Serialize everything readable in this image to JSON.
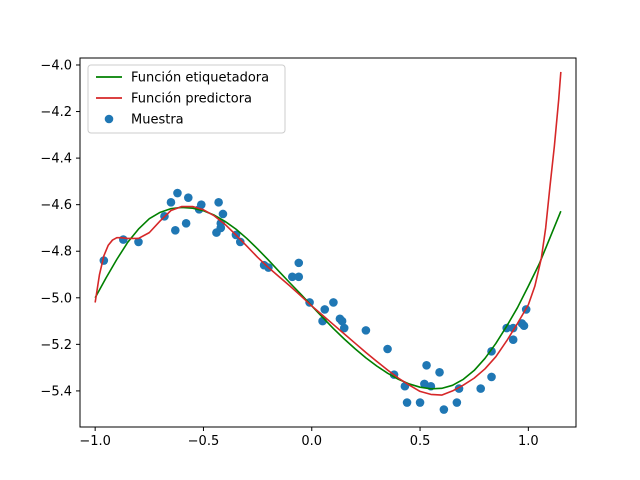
{
  "chart_data": {
    "type": "line",
    "title": "",
    "xlabel": "",
    "ylabel": "",
    "xlim": [
      -1.07,
      1.22
    ],
    "ylim": [
      -5.555,
      -3.97
    ],
    "xticks": [
      -1.0,
      -0.5,
      0.0,
      0.5,
      1.0
    ],
    "xtick_labels": [
      "−1.0",
      "−0.5",
      "0.0",
      "0.5",
      "1.0"
    ],
    "yticks": [
      -5.4,
      -5.2,
      -5.0,
      -4.8,
      -4.6,
      -4.4,
      -4.2,
      -4.0
    ],
    "ytick_labels": [
      "−5.4",
      "−5.2",
      "−5.0",
      "−4.8",
      "−4.6",
      "−4.4",
      "−4.2",
      "−4.0"
    ],
    "grid": false,
    "legend_position": "top-left",
    "series": [
      {
        "name": "Función etiquetadora",
        "kind": "line",
        "color": "#008000",
        "x": [
          -1.0,
          -0.95,
          -0.9,
          -0.85,
          -0.8,
          -0.75,
          -0.7,
          -0.65,
          -0.6,
          -0.55,
          -0.5,
          -0.45,
          -0.4,
          -0.35,
          -0.3,
          -0.25,
          -0.2,
          -0.15,
          -0.1,
          -0.05,
          0.0,
          0.05,
          0.1,
          0.15,
          0.2,
          0.25,
          0.3,
          0.35,
          0.4,
          0.45,
          0.5,
          0.55,
          0.6,
          0.65,
          0.7,
          0.75,
          0.8,
          0.85,
          0.9,
          0.95,
          1.0,
          1.05,
          1.1,
          1.15
        ],
        "y": [
          -5.0,
          -4.915,
          -4.835,
          -4.762,
          -4.705,
          -4.66,
          -4.633,
          -4.617,
          -4.612,
          -4.615,
          -4.626,
          -4.645,
          -4.672,
          -4.705,
          -4.745,
          -4.79,
          -4.838,
          -4.888,
          -4.937,
          -4.985,
          -5.035,
          -5.084,
          -5.132,
          -5.177,
          -5.219,
          -5.258,
          -5.293,
          -5.324,
          -5.35,
          -5.37,
          -5.384,
          -5.391,
          -5.389,
          -5.376,
          -5.35,
          -5.312,
          -5.26,
          -5.196,
          -5.122,
          -5.042,
          -4.95,
          -4.855,
          -4.742,
          -4.628
        ]
      },
      {
        "name": "Función predictora",
        "kind": "line",
        "color": "#d62728",
        "x": [
          -1.0,
          -0.98,
          -0.96,
          -0.94,
          -0.92,
          -0.9,
          -0.88,
          -0.85,
          -0.8,
          -0.75,
          -0.7,
          -0.65,
          -0.6,
          -0.55,
          -0.5,
          -0.45,
          -0.4,
          -0.35,
          -0.3,
          -0.25,
          -0.2,
          -0.15,
          -0.1,
          -0.05,
          0.0,
          0.05,
          0.1,
          0.15,
          0.2,
          0.25,
          0.3,
          0.35,
          0.4,
          0.45,
          0.5,
          0.55,
          0.6,
          0.65,
          0.7,
          0.75,
          0.8,
          0.85,
          0.9,
          0.95,
          1.0,
          1.03,
          1.06,
          1.08,
          1.1,
          1.12,
          1.14,
          1.15
        ],
        "y": [
          -5.02,
          -4.9,
          -4.82,
          -4.775,
          -4.752,
          -4.742,
          -4.742,
          -4.745,
          -4.745,
          -4.72,
          -4.67,
          -4.625,
          -4.608,
          -4.608,
          -4.622,
          -4.648,
          -4.685,
          -4.73,
          -4.778,
          -4.826,
          -4.87,
          -4.91,
          -4.95,
          -4.992,
          -5.035,
          -5.075,
          -5.115,
          -5.155,
          -5.195,
          -5.235,
          -5.273,
          -5.31,
          -5.345,
          -5.375,
          -5.402,
          -5.415,
          -5.418,
          -5.4,
          -5.375,
          -5.345,
          -5.305,
          -5.253,
          -5.185,
          -5.11,
          -5.03,
          -4.95,
          -4.83,
          -4.7,
          -4.52,
          -4.35,
          -4.15,
          -4.03
        ]
      },
      {
        "name": "Muestra",
        "kind": "scatter",
        "color": "#1f77b4",
        "x": [
          -0.96,
          -0.87,
          -0.8,
          -0.68,
          -0.65,
          -0.63,
          -0.62,
          -0.58,
          -0.57,
          -0.52,
          -0.51,
          -0.44,
          -0.43,
          -0.42,
          -0.42,
          -0.41,
          -0.35,
          -0.33,
          -0.22,
          -0.2,
          -0.09,
          -0.06,
          -0.06,
          -0.01,
          0.05,
          0.06,
          0.1,
          0.13,
          0.14,
          0.15,
          0.25,
          0.35,
          0.38,
          0.43,
          0.44,
          0.5,
          0.52,
          0.53,
          0.55,
          0.59,
          0.61,
          0.67,
          0.68,
          0.78,
          0.83,
          0.83,
          0.9,
          0.93,
          0.93,
          0.97,
          0.98,
          0.99
        ],
        "y": [
          -4.84,
          -4.75,
          -4.76,
          -4.65,
          -4.59,
          -4.71,
          -4.55,
          -4.68,
          -4.57,
          -4.62,
          -4.6,
          -4.72,
          -4.59,
          -4.7,
          -4.68,
          -4.64,
          -4.73,
          -4.76,
          -4.86,
          -4.87,
          -4.91,
          -4.91,
          -4.85,
          -5.02,
          -5.1,
          -5.05,
          -5.02,
          -5.09,
          -5.1,
          -5.13,
          -5.14,
          -5.22,
          -5.33,
          -5.38,
          -5.45,
          -5.45,
          -5.37,
          -5.29,
          -5.38,
          -5.32,
          -5.48,
          -5.45,
          -5.39,
          -5.39,
          -5.34,
          -5.23,
          -5.13,
          -5.13,
          -5.18,
          -5.11,
          -5.12,
          -5.05
        ]
      }
    ]
  }
}
